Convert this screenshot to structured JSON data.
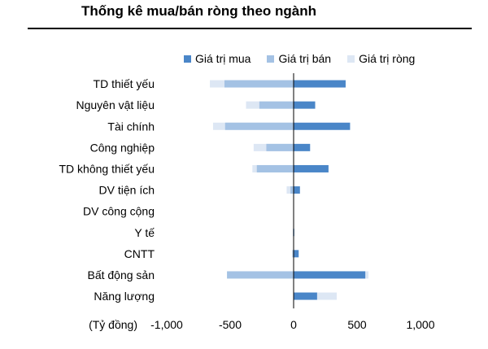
{
  "title": "Thống kê mua/bán ròng theo ngành",
  "colors": {
    "buy": "#4a86c8",
    "sell": "#a4c2e4",
    "net": "#dde7f4",
    "axis": "#000000"
  },
  "chart_data": {
    "type": "bar",
    "orientation": "horizontal",
    "title": "Thống kê mua/bán ròng theo ngành",
    "xlabel": "(Tỷ đồng)",
    "xlim": [
      -1000,
      1000
    ],
    "xticks": [
      -1000,
      -500,
      0,
      500,
      1000
    ],
    "xtick_labels": [
      "-1,000",
      "-500",
      "0",
      "500",
      "1,000"
    ],
    "grid": false,
    "legend_position": "top",
    "categories": [
      "TD thiết yếu",
      "Nguyên vật liệu",
      "Tài chính",
      "Công nghiệp",
      "TD không thiết yếu",
      "DV tiện ích",
      "DV công cộng",
      "Y tế",
      "CNTT",
      "Bất động sản",
      "Năng lượng"
    ],
    "series": [
      {
        "name": "Giá trị mua",
        "values": [
          410,
          170,
          445,
          130,
          275,
          50,
          0,
          5,
          40,
          565,
          185
        ]
      },
      {
        "name": "Giá trị bán",
        "values": [
          -545,
          -270,
          -540,
          -215,
          -290,
          -25,
          0,
          -5,
          -10,
          -525,
          0
        ]
      },
      {
        "name": "Giá trị ròng",
        "values": [
          -660,
          -375,
          -635,
          -315,
          -325,
          -55,
          0,
          0,
          20,
          590,
          340
        ]
      }
    ]
  }
}
